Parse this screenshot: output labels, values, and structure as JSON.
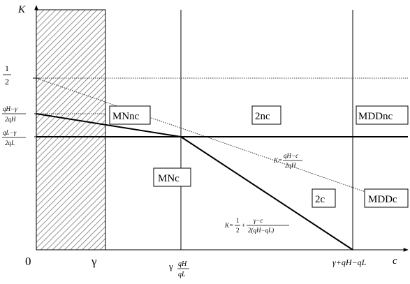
{
  "axes": {
    "y_label": "K",
    "x_label": "c",
    "origin_label": "0"
  },
  "y_ticks": {
    "half": {
      "num": "1",
      "den": "2"
    },
    "qh": {
      "num": "qH−γ",
      "den": "2qH"
    },
    "ql": {
      "num": "qL−γ",
      "den": "2qL"
    }
  },
  "x_ticks": {
    "gamma": "γ",
    "gamma_ratio": {
      "prefix": "γ",
      "num": "qH",
      "den": "qL"
    },
    "gamma_plus": "γ+qH−qL"
  },
  "regions": {
    "mnnc": "MNnc",
    "twonc": "2nc",
    "mddnc": "MDDnc",
    "mnc": "MNc",
    "twoc": "2c",
    "mddc": "MDDc"
  },
  "formulas": {
    "dotted_line": {
      "lhs": "K=",
      "num": "qH−c",
      "den": "2qH"
    },
    "solid_line": {
      "lhs": "K=",
      "f1num": "1",
      "f1den": "2",
      "plus": "+",
      "f2num": "γ−c",
      "f2den": "2(qH−qL)"
    }
  },
  "colors": {
    "line": "#000000",
    "hatch": "#666666",
    "background": "#ffffff"
  }
}
